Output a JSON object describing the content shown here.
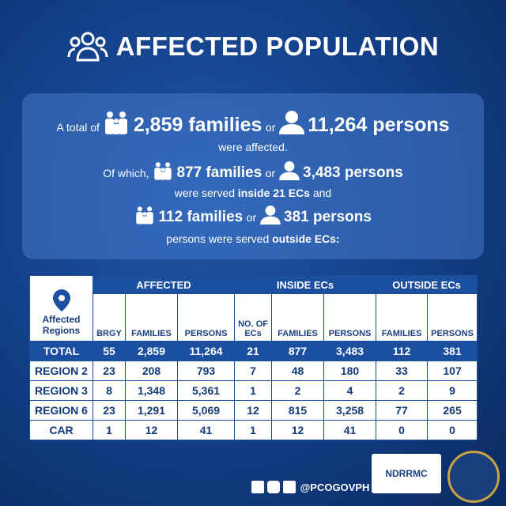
{
  "header": {
    "title": "AFFECTED POPULATION"
  },
  "summary": {
    "line1": {
      "lead": "A total of",
      "families": "2,859 families",
      "or": "or",
      "persons": "11,264 persons"
    },
    "line2": "were affected.",
    "line3": {
      "lead": "Of which,",
      "families": "877 families",
      "or": "or",
      "persons": "3,483 persons"
    },
    "line4": {
      "text": "were served",
      "bold": "inside 21 ECs",
      "tail": "and"
    },
    "line5": {
      "families": "112 families",
      "or": "or",
      "persons": "381 persons"
    },
    "line6": {
      "text": "persons were served",
      "bold": "outside ECs:"
    }
  },
  "table": {
    "groups": [
      "AFFECTED",
      "INSIDE ECs",
      "OUTSIDE ECs"
    ],
    "columns": [
      "Affected Regions",
      "BRGY",
      "FAMILIES",
      "PERSONS",
      "NO. OF ECs",
      "FAMILIES",
      "PERSONS",
      "FAMILIES",
      "PERSONS"
    ],
    "total": [
      "TOTAL",
      "55",
      "2,859",
      "11,264",
      "21",
      "877",
      "3,483",
      "112",
      "381"
    ],
    "rows": [
      [
        "REGION 2",
        "23",
        "208",
        "793",
        "7",
        "48",
        "180",
        "33",
        "107"
      ],
      [
        "REGION 3",
        "8",
        "1,348",
        "5,361",
        "1",
        "2",
        "4",
        "2",
        "9"
      ],
      [
        "REGION 6",
        "23",
        "1,291",
        "5,069",
        "12",
        "815",
        "3,258",
        "77",
        "265"
      ],
      [
        "CAR",
        "1",
        "12",
        "41",
        "1",
        "12",
        "41",
        "0",
        "0"
      ]
    ]
  },
  "footer": {
    "handle": "@PCOGOVPH",
    "logo": "NDRRMC"
  }
}
